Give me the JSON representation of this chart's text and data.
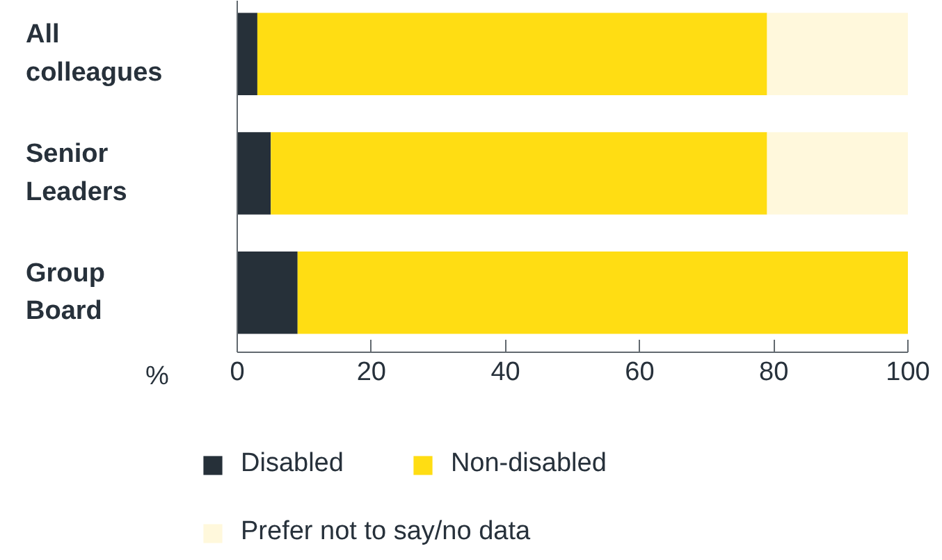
{
  "chart_data": {
    "type": "bar",
    "orientation": "horizontal",
    "stacked": true,
    "xlabel": "%",
    "categories": [
      "All colleagues",
      "Senior Leaders",
      "Group Board"
    ],
    "series": [
      {
        "name": "Disabled",
        "color": "#263039",
        "values": [
          3,
          5,
          9
        ]
      },
      {
        "name": "Non-disabled",
        "color": "#ffdd13",
        "values": [
          76,
          74,
          91
        ]
      },
      {
        "name": "Prefer not to say/no data",
        "color": "#fff8dc",
        "values": [
          21,
          21,
          0
        ]
      }
    ],
    "xlim": [
      0,
      100
    ],
    "xticks": [
      0,
      20,
      40,
      60,
      80,
      100
    ],
    "grid": false,
    "legend": "bottom"
  }
}
